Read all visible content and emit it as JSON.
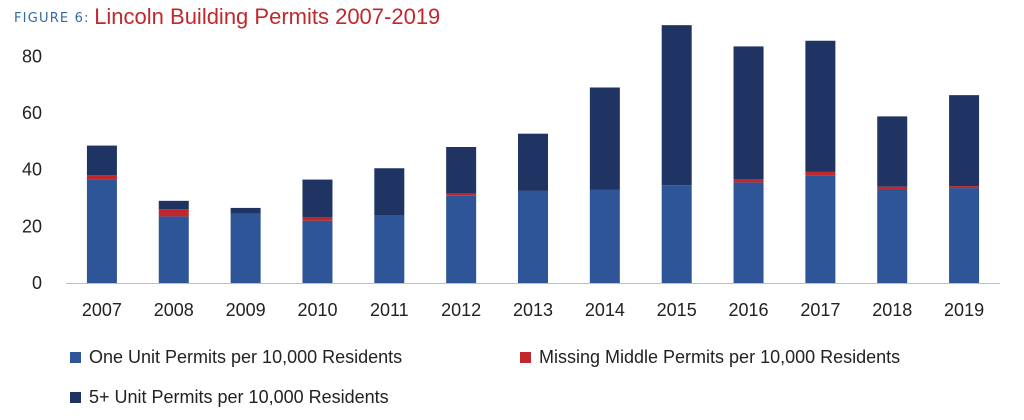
{
  "figure_label": "FIGURE 6:",
  "title": "Lincoln Building Permits 2007-2019",
  "colors": {
    "one_unit": "#2e5597",
    "missing_middle": "#c0282d",
    "five_plus": "#1f3462",
    "axis": "#bfbfbf",
    "text": "#222222"
  },
  "chart_data": {
    "type": "bar",
    "stacked": true,
    "title": "Lincoln Building Permits 2007-2019",
    "xlabel": "",
    "ylabel": "",
    "ylim": [
      0,
      90
    ],
    "yticks": [
      0,
      20,
      40,
      60,
      80
    ],
    "grid": false,
    "legend_position": "bottom",
    "categories": [
      "2007",
      "2008",
      "2009",
      "2010",
      "2011",
      "2012",
      "2013",
      "2014",
      "2015",
      "2016",
      "2017",
      "2018",
      "2019"
    ],
    "series": [
      {
        "name": "One Unit Permits per 10,000 Residents",
        "color": "#2e5597",
        "values": [
          36.5,
          23.5,
          24.5,
          22,
          24,
          31,
          32.5,
          33,
          34.5,
          35.5,
          38,
          33,
          33.5
        ]
      },
      {
        "name": "Missing Middle Permits per 10,000 Residents",
        "color": "#c0282d",
        "values": [
          1.5,
          2.5,
          0,
          1.3,
          0,
          0.5,
          0,
          0,
          0,
          1.2,
          1.2,
          1,
          0.7
        ]
      },
      {
        "name": "5+ Unit Permits per 10,000 Residents",
        "color": "#1f3462",
        "values": [
          10.5,
          3,
          2,
          13.2,
          16.5,
          16.5,
          20.2,
          36,
          56.5,
          46.8,
          46.3,
          24.8,
          32.1
        ]
      }
    ]
  }
}
